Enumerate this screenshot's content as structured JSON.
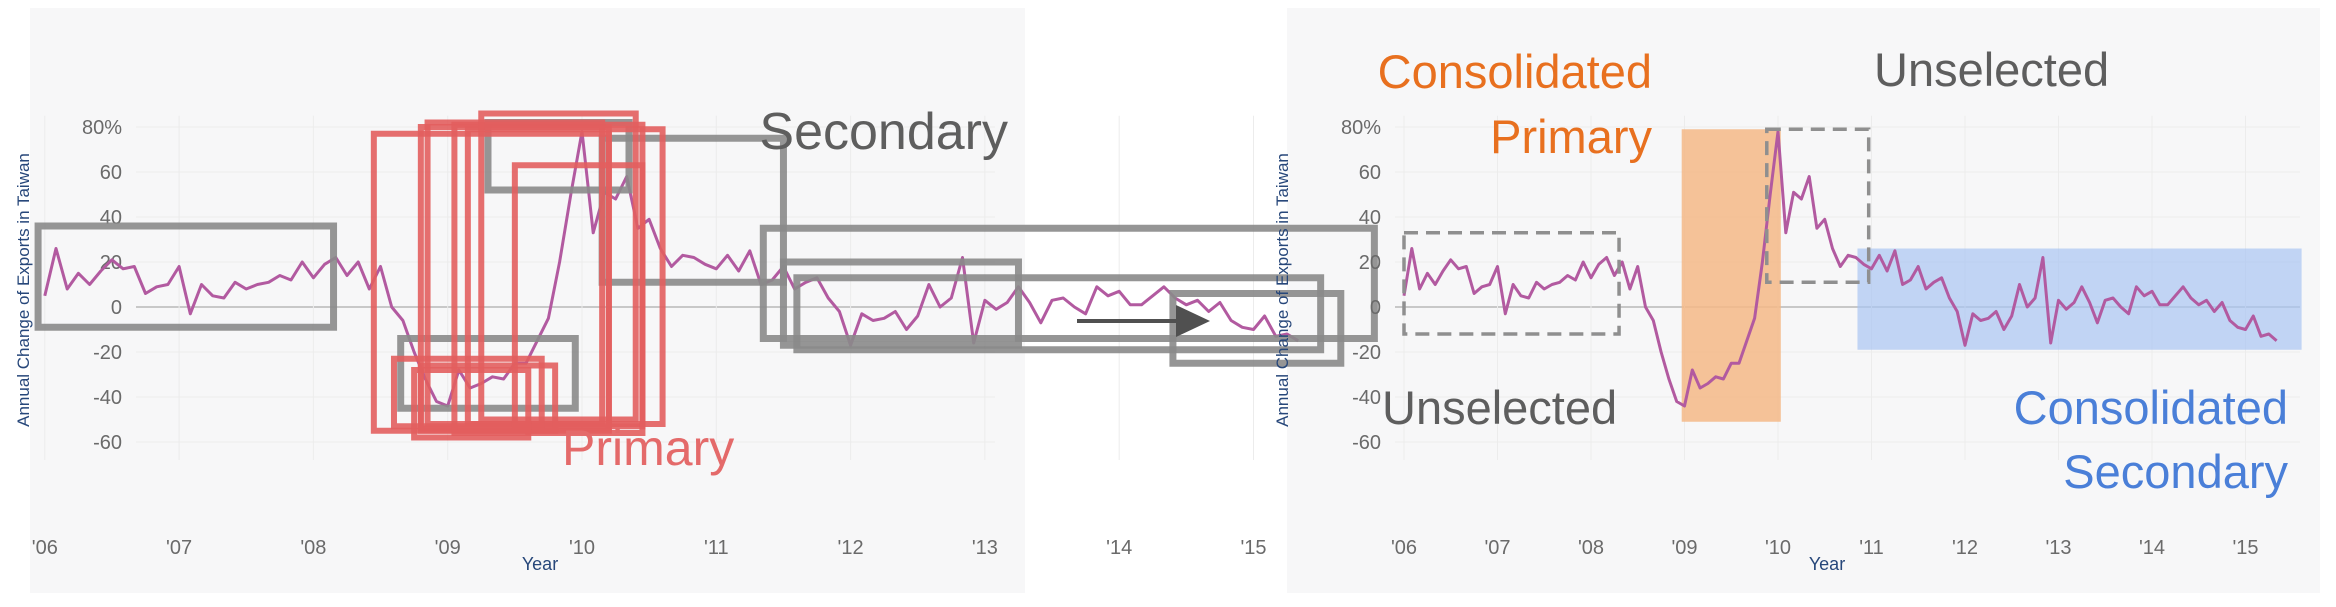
{
  "charts": [
    {
      "id": "left",
      "title": "",
      "y_axis_label": "Annual Change of Exports in Taiwan",
      "x_axis_label": "Year",
      "annotations": [
        {
          "id": "secondary",
          "text_lines": [
            "Secondary"
          ],
          "color": "#5e5e5e"
        },
        {
          "id": "primary",
          "text_lines": [
            "Primary"
          ],
          "color": "#e46a6a"
        }
      ]
    },
    {
      "id": "right",
      "title": "",
      "y_axis_label": "Annual Change of Exports in Taiwan",
      "x_axis_label": "Year",
      "annotations": [
        {
          "id": "consolidated-primary",
          "text_lines": [
            "Consolidated",
            "Primary"
          ],
          "color": "#e8701f"
        },
        {
          "id": "unselected-top",
          "text_lines": [
            "Unselected"
          ],
          "color": "#5e5e5e"
        },
        {
          "id": "unselected-bottom",
          "text_lines": [
            "Unselected"
          ],
          "color": "#5e5e5e"
        },
        {
          "id": "consolidated-secondary",
          "text_lines": [
            "Consolidated",
            "Secondary"
          ],
          "color": "#4a7fd8"
        }
      ]
    }
  ],
  "arrow": {
    "color": "#505050"
  },
  "colors": {
    "line": "#b25aa0",
    "primary_box": "#e25e5e",
    "secondary_box": "#8a8a8a",
    "primary_fill": "#f5b987",
    "secondary_fill": "#a9c4f2",
    "unselected_box": "#8f8f8f",
    "tick_text": "#6a6a6a",
    "axis_label": "#27477a"
  },
  "chart_data": {
    "type": "line",
    "x_start": 2006.0,
    "x_step": 0.08333,
    "xlim": [
      2005.9,
      2015.9
    ],
    "ylim": [
      -68,
      85
    ],
    "x_ticks": [
      {
        "value": 2006,
        "label": "'06"
      },
      {
        "value": 2007,
        "label": "'07"
      },
      {
        "value": 2008,
        "label": "'08"
      },
      {
        "value": 2009,
        "label": "'09"
      },
      {
        "value": 2010,
        "label": "'10"
      },
      {
        "value": 2011,
        "label": "'11"
      },
      {
        "value": 2012,
        "label": "'12"
      },
      {
        "value": 2013,
        "label": "'13"
      },
      {
        "value": 2014,
        "label": "'14"
      },
      {
        "value": 2015,
        "label": "'15"
      }
    ],
    "y_ticks": [
      {
        "value": 80,
        "label": "80%"
      },
      {
        "value": 60,
        "label": "60"
      },
      {
        "value": 40,
        "label": "40"
      },
      {
        "value": 20,
        "label": "20"
      },
      {
        "value": 0,
        "label": "0"
      },
      {
        "value": -20,
        "label": "-20"
      },
      {
        "value": -40,
        "label": "-40"
      },
      {
        "value": -60,
        "label": "-60"
      }
    ],
    "series": [
      {
        "values": [
          5,
          26,
          8,
          15,
          10,
          16,
          21,
          17,
          18,
          6,
          9,
          10,
          18,
          -3,
          10,
          5,
          4,
          11,
          8,
          10,
          11,
          14,
          12,
          20,
          13,
          19,
          22,
          14,
          20,
          8,
          18,
          0,
          -6,
          -20,
          -32,
          -42,
          -44,
          -28,
          -36,
          -34,
          -31,
          -32,
          -25,
          -25,
          -15,
          -5,
          20,
          50,
          78,
          33,
          51,
          48,
          58,
          35,
          39,
          26,
          18,
          23,
          22,
          19,
          17,
          23,
          16,
          25,
          10,
          12,
          18,
          8,
          11,
          13,
          4,
          -2,
          -17,
          -3,
          -6,
          -5,
          -2,
          -10,
          -4,
          10,
          0,
          4,
          22,
          -16,
          3,
          -1,
          2,
          9,
          2,
          -7,
          3,
          4,
          0,
          -3,
          9,
          5,
          7,
          1,
          1,
          5,
          9,
          4,
          1,
          3,
          -2,
          2,
          -6,
          -9,
          -10,
          -4,
          -13,
          -12,
          -15
        ]
      }
    ],
    "overlays": {
      "left_secondary_boxes": [
        {
          "x": [
            2005.95,
            2008.15
          ],
          "y": [
            -9,
            36
          ]
        },
        {
          "x": [
            2009.3,
            2010.35
          ],
          "y": [
            52,
            82
          ]
        },
        {
          "x": [
            2010.15,
            2011.5
          ],
          "y": [
            11,
            75
          ]
        },
        {
          "x": [
            2011.35,
            2015.9
          ],
          "y": [
            -14,
            35
          ]
        },
        {
          "x": [
            2011.5,
            2013.25
          ],
          "y": [
            -17,
            20
          ]
        },
        {
          "x": [
            2011.6,
            2015.5
          ],
          "y": [
            -19,
            13
          ]
        },
        {
          "x": [
            2014.4,
            2015.65
          ],
          "y": [
            -25,
            6
          ]
        },
        {
          "x": [
            2008.65,
            2009.95
          ],
          "y": [
            -45,
            -14
          ]
        }
      ],
      "left_primary_boxes": [
        {
          "x": [
            2008.45,
            2010.2
          ],
          "y": [
            -55,
            77
          ]
        },
        {
          "x": [
            2008.85,
            2010.15
          ],
          "y": [
            -52,
            82
          ]
        },
        {
          "x": [
            2008.8,
            2010.2
          ],
          "y": [
            -54,
            80
          ]
        },
        {
          "x": [
            2009.05,
            2010.45
          ],
          "y": [
            -56,
            81
          ]
        },
        {
          "x": [
            2009.15,
            2010.6
          ],
          "y": [
            -52,
            79
          ]
        },
        {
          "x": [
            2009.25,
            2010.4
          ],
          "y": [
            -50,
            86
          ]
        },
        {
          "x": [
            2009.5,
            2010.45
          ],
          "y": [
            -53,
            63
          ]
        },
        {
          "x": [
            2008.8,
            2009.8
          ],
          "y": [
            -55,
            -26
          ]
        },
        {
          "x": [
            2008.6,
            2009.7
          ],
          "y": [
            -53,
            -23
          ]
        },
        {
          "x": [
            2008.75,
            2009.6
          ],
          "y": [
            -58,
            -28
          ]
        }
      ],
      "right_primary_band": {
        "x": [
          2008.97,
          2010.03
        ],
        "y": [
          -51,
          79
        ]
      },
      "right_secondary_band": {
        "x": [
          2010.85,
          2015.6
        ],
        "y": [
          -19,
          26
        ]
      },
      "right_unselected_boxes": [
        {
          "x": [
            2006.0,
            2008.3
          ],
          "y": [
            -12,
            33
          ]
        },
        {
          "x": [
            2009.88,
            2010.97
          ],
          "y": [
            11,
            79
          ]
        }
      ]
    }
  }
}
